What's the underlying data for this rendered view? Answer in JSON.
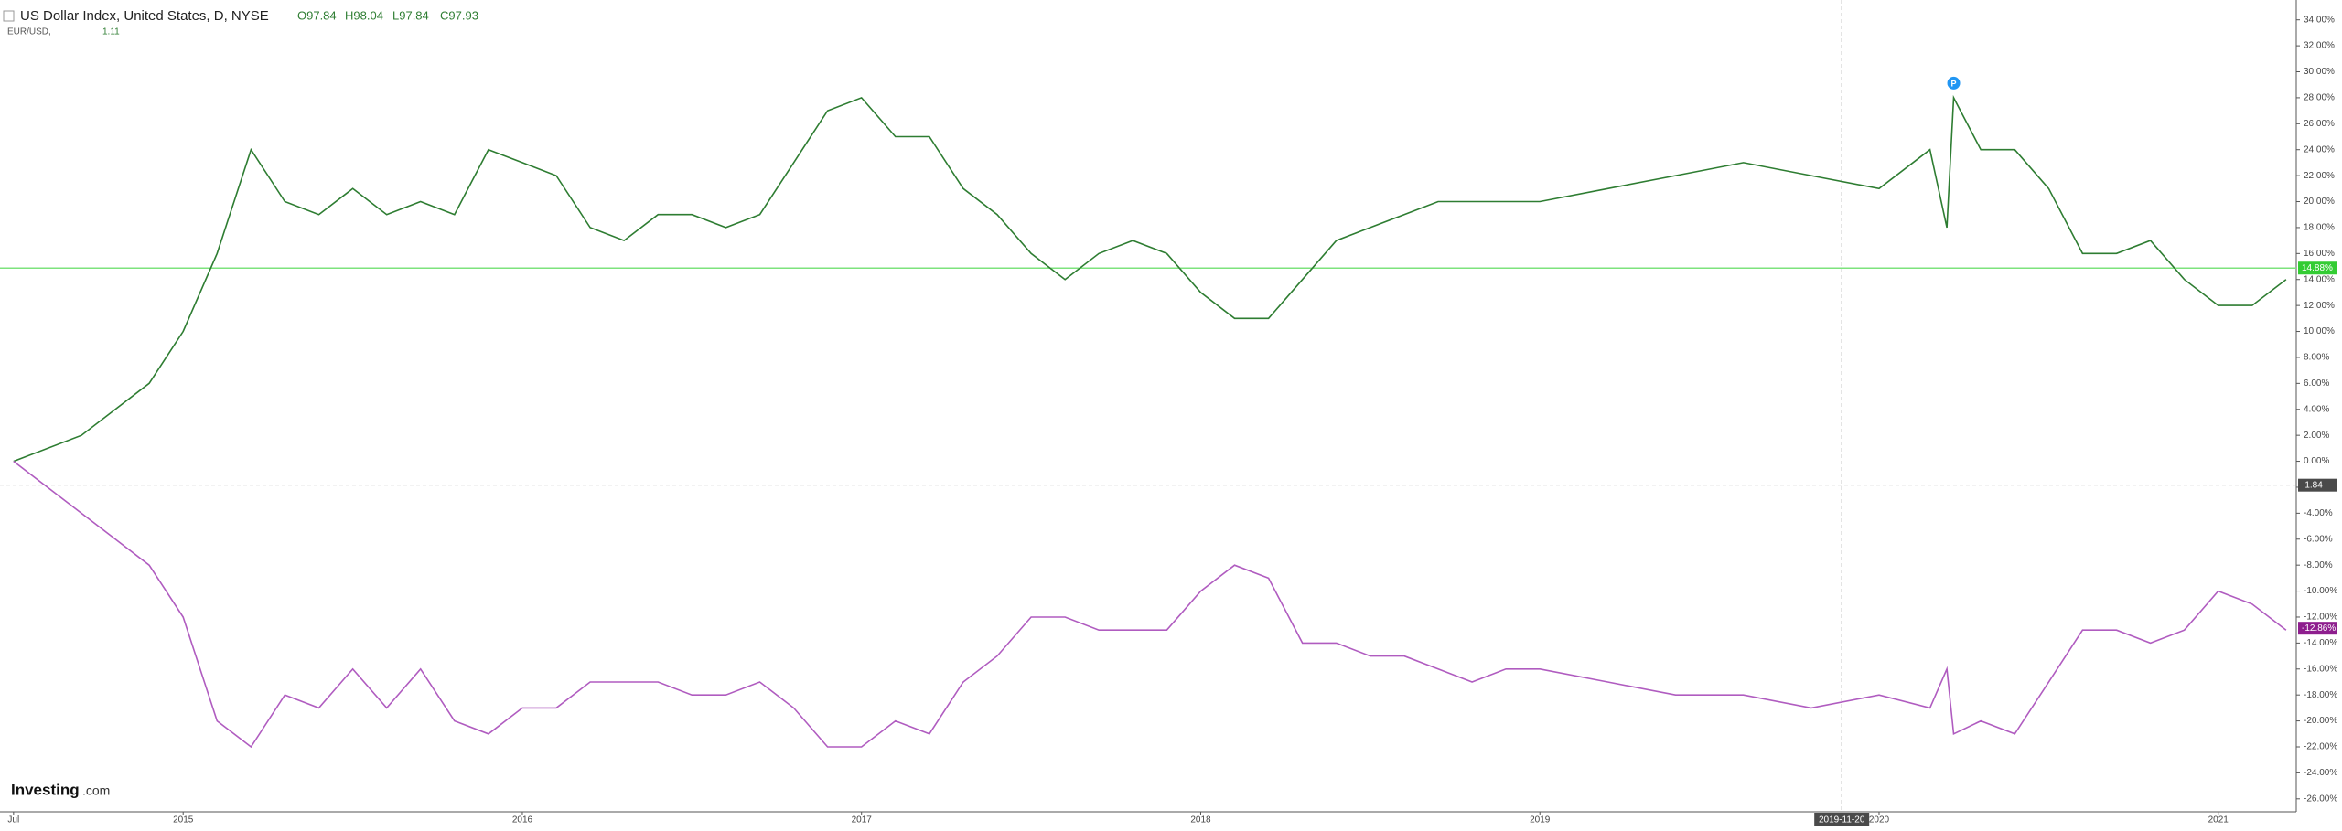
{
  "chart_data": {
    "type": "line",
    "title": "US Dollar Index, United States, D, NYSE",
    "ohlc": [
      "O97.84",
      "H98.04",
      "L97.84",
      "C97.93"
    ],
    "compare_label": "EUR/USD,",
    "compare_value": "1.11",
    "logo": [
      "Investing",
      ".com"
    ],
    "x": [
      2014.5,
      2014.7,
      2014.9,
      2015.0,
      2015.1,
      2015.2,
      2015.3,
      2015.4,
      2015.5,
      2015.6,
      2015.7,
      2015.8,
      2015.9,
      2016.0,
      2016.1,
      2016.2,
      2016.3,
      2016.4,
      2016.5,
      2016.6,
      2016.7,
      2016.8,
      2016.9,
      2017.0,
      2017.1,
      2017.2,
      2017.3,
      2017.4,
      2017.5,
      2017.6,
      2017.7,
      2017.8,
      2017.9,
      2018.0,
      2018.1,
      2018.2,
      2018.3,
      2018.4,
      2018.5,
      2018.6,
      2018.7,
      2018.8,
      2018.9,
      2019.0,
      2019.2,
      2019.4,
      2019.6,
      2019.8,
      2020.0,
      2020.15,
      2020.2,
      2020.22,
      2020.3,
      2020.4,
      2020.5,
      2020.6,
      2020.7,
      2020.8,
      2020.9,
      2021.0,
      2021.1,
      2021.2
    ],
    "series": [
      {
        "name": "US Dollar Index",
        "color": "#2e7d32",
        "values": [
          0,
          2,
          6,
          10,
          16,
          24,
          20,
          19,
          21,
          19,
          20,
          19,
          24,
          23,
          22,
          18,
          17,
          19,
          19,
          18,
          19,
          23,
          27,
          28,
          25,
          25,
          21,
          19,
          16,
          14,
          16,
          17,
          16,
          13,
          11,
          11,
          14,
          17,
          18,
          19,
          20,
          20,
          20,
          20,
          21,
          22,
          23,
          22,
          21,
          24,
          18,
          28,
          24,
          24,
          21,
          16,
          16,
          17,
          14,
          12,
          12,
          14
        ]
      },
      {
        "name": "EUR/USD",
        "color": "#b05cc0",
        "values": [
          0,
          -4,
          -8,
          -12,
          -20,
          -22,
          -18,
          -19,
          -16,
          -19,
          -16,
          -20,
          -21,
          -19,
          -19,
          -17,
          -17,
          -17,
          -18,
          -18,
          -17,
          -19,
          -22,
          -22,
          -20,
          -21,
          -17,
          -15,
          -12,
          -12,
          -13,
          -13,
          -13,
          -10,
          -8,
          -9,
          -14,
          -14,
          -15,
          -15,
          -16,
          -17,
          -16,
          -16,
          -17,
          -18,
          -18,
          -19,
          -18,
          -19,
          -16,
          -21,
          -20,
          -21,
          -17,
          -13,
          -13,
          -14,
          -13,
          -10,
          -11,
          -13
        ]
      }
    ],
    "xlim": [
      2014.46,
      2021.23
    ],
    "xticks": [
      {
        "value": 2014.5,
        "label": "Jul"
      },
      2015,
      2016,
      2017,
      2018,
      2019,
      2020,
      2021
    ],
    "ylim": [
      -27,
      35
    ],
    "yticks": [
      {
        "value": 34,
        "label": "34.00%"
      },
      {
        "value": 32,
        "label": "32.00%"
      },
      {
        "value": 30,
        "label": "30.00%"
      },
      {
        "value": 28,
        "label": "28.00%"
      },
      {
        "value": 26,
        "label": "26.00%"
      },
      {
        "value": 24,
        "label": "24.00%"
      },
      {
        "value": 22,
        "label": "22.00%"
      },
      {
        "value": 20,
        "label": "20.00%"
      },
      {
        "value": 18,
        "label": "18.00%"
      },
      {
        "value": 16,
        "label": "16.00%"
      },
      {
        "value": 14,
        "label": "14.00%"
      },
      {
        "value": 12,
        "label": "12.00%"
      },
      {
        "value": 10,
        "label": "10.00%"
      },
      {
        "value": 8,
        "label": "8.00%"
      },
      {
        "value": 6,
        "label": "6.00%"
      },
      {
        "value": 4,
        "label": "4.00%"
      },
      {
        "value": 2,
        "label": "2.00%"
      },
      {
        "value": 0,
        "label": "0.00%"
      },
      {
        "value": -2,
        "label": "-2.00%"
      },
      {
        "value": -4,
        "label": "-4.00%"
      },
      {
        "value": -6,
        "label": "-6.00%"
      },
      {
        "value": -8,
        "label": "-8.00%"
      },
      {
        "value": -10,
        "label": "-10.00%"
      },
      {
        "value": -12,
        "label": "-12.00%"
      },
      {
        "value": -14,
        "label": "-14.00%"
      },
      {
        "value": -16,
        "label": "-16.00%"
      },
      {
        "value": -18,
        "label": "-18.00%"
      },
      {
        "value": -20,
        "label": "-20.00%"
      },
      {
        "value": -22,
        "label": "-22.00%"
      },
      {
        "value": -24,
        "label": "-24.00%"
      },
      {
        "value": -26,
        "label": "-26.00%"
      }
    ],
    "price_badges": [
      {
        "value": 14.88,
        "label": "14.88%",
        "color": "#33cc33",
        "line": true
      },
      {
        "value": -1.84,
        "label": "-1.84",
        "color": "#4a4a4a",
        "dashed": true
      },
      {
        "value": -12.86,
        "label": "-12.86%",
        "color": "#8e1e8e"
      }
    ],
    "crosshair_x": {
      "value": 2019.89,
      "label": "2019-11-20"
    },
    "event_marker": {
      "value": 2020.22,
      "y": 28,
      "label": "P"
    }
  }
}
